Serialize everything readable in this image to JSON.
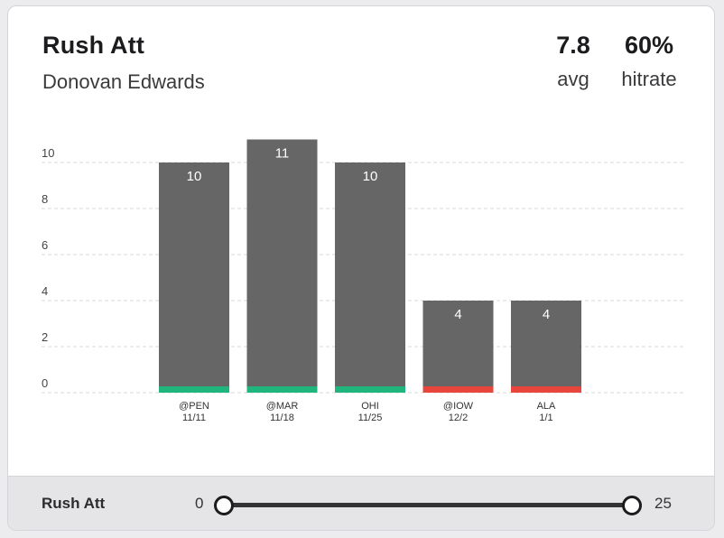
{
  "header": {
    "stat_name": "Rush Att",
    "player": "Donovan Edwards",
    "avg_value": "7.8",
    "avg_label": "avg",
    "hitrate_value": "60%",
    "hitrate_label": "hitrate"
  },
  "chart_data": {
    "type": "bar",
    "categories": [
      "@PEN",
      "@MAR",
      "OHI",
      "@IOW",
      "ALA"
    ],
    "dates": [
      "11/11",
      "11/18",
      "11/25",
      "12/2",
      "1/1"
    ],
    "values": [
      10,
      11,
      10,
      4,
      4
    ],
    "hit": [
      true,
      true,
      true,
      false,
      false
    ],
    "yticks": [
      0,
      2,
      4,
      6,
      8,
      10
    ],
    "ylim": [
      0,
      10
    ],
    "bar_color": "#666666",
    "hit_color": "#21b57e",
    "miss_color": "#e8453c",
    "grid": true
  },
  "filter": {
    "label": "Rush Att",
    "min": "0",
    "max": "25"
  }
}
